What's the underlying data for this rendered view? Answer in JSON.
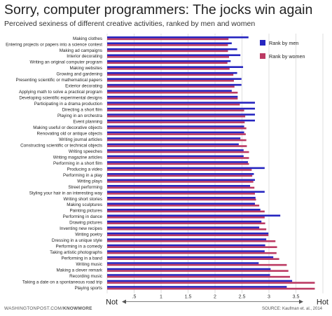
{
  "header": {
    "title": "Sorry, computer programmers: The jocks win again",
    "subtitle": "Perceived sexiness of different creative activities, ranked by men and women"
  },
  "footer": {
    "left_site": "WASHINGTONPOST.COM/",
    "left_brand": "KNOWMORE",
    "source": "SOURCE: Kaufman et. al., 2014"
  },
  "chart_data": {
    "type": "bar",
    "orientation": "horizontal",
    "title": "",
    "xlim": [
      0,
      4
    ],
    "x_ticks": [
      "0",
      ".5",
      "1",
      "1.5",
      "2",
      "2.5",
      "3",
      "3.5",
      "4"
    ],
    "x_end_labels": {
      "low": "Not",
      "high": "Hot"
    },
    "grid": true,
    "legend_position": "top-right",
    "colors": {
      "men": "#2525c0",
      "women": "#bc3a63"
    },
    "categories": [
      "Making clothes",
      "Entering projects or papers into a science contest",
      "Making ad campaigns",
      "Interior decorating",
      "Writing an original computer program",
      "Making websites",
      "Growing and gardening",
      "Presenting scientific or mathematical papers",
      "Exterior decorating",
      "Applying math to solve a practical program",
      "Developing scientific experimental designs",
      "Participating in a drama production",
      "Directing a short film",
      "Playing in an orchestra",
      "Event planning",
      "Making useful or decorative objects",
      "Renovating old or antique objects",
      "Writing journal articles",
      "Constructing scientific or technical objects",
      "Writing speeches",
      "Writing magazine articles",
      "Performing in a short film",
      "Producing a video",
      "Performing in a play",
      "Writing plays",
      "Street performing",
      "Styling your hair in an interesting way",
      "Writing short stories",
      "Making sculptures",
      "Painting pictures",
      "Performing in dance",
      "Drawing pictures",
      "Inventing new recipes",
      "Writing poetry",
      "Dressing in a unique style",
      "Performing in a comedy",
      "Taking artistic photographs",
      "Performing in a band",
      "Writing music",
      "Making a clever remark",
      "Recording music",
      "Taking a date on a spontaneous road trip",
      "Playing sports"
    ],
    "series": [
      {
        "name": "Rank by men",
        "values": [
          2.62,
          2.31,
          2.41,
          2.47,
          2.29,
          2.52,
          2.41,
          2.49,
          2.49,
          2.31,
          2.42,
          2.74,
          2.74,
          2.74,
          2.74,
          2.54,
          2.54,
          2.47,
          2.44,
          2.53,
          2.53,
          2.61,
          2.92,
          2.72,
          2.74,
          2.65,
          2.92,
          2.75,
          2.74,
          2.84,
          3.21,
          2.86,
          2.82,
          2.99,
          2.95,
          2.93,
          2.92,
          3.08,
          2.81,
          3.03,
          3.02,
          3.43,
          3.33
        ]
      },
      {
        "name": "Rank by women",
        "values": [
          2.25,
          2.24,
          2.24,
          2.26,
          2.23,
          2.27,
          2.34,
          2.35,
          2.36,
          2.42,
          2.42,
          2.46,
          2.54,
          2.56,
          2.55,
          2.58,
          2.57,
          2.58,
          2.59,
          2.63,
          2.63,
          2.63,
          2.68,
          2.69,
          2.71,
          2.73,
          2.74,
          2.76,
          2.82,
          2.92,
          2.92,
          2.93,
          2.95,
          2.99,
          3.12,
          3.15,
          3.14,
          3.19,
          3.33,
          3.36,
          3.39,
          3.85,
          3.85
        ]
      }
    ]
  }
}
